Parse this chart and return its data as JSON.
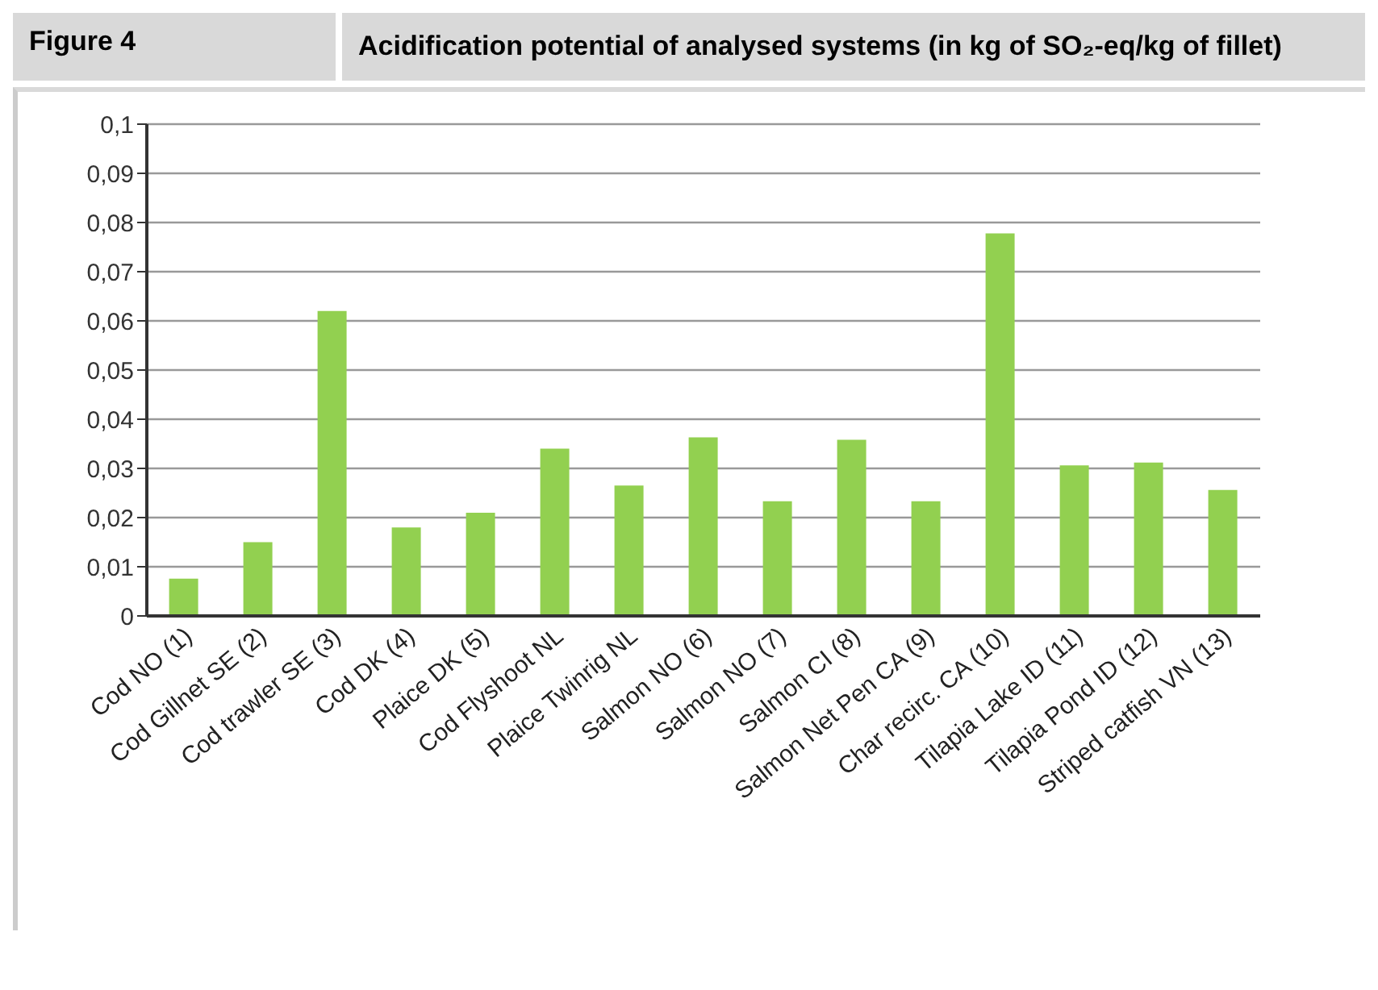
{
  "chart_data": {
    "type": "bar",
    "title": "Acidification potential of analysed systems (in kg of SO₂-eq/kg of fillet)",
    "annotations": [
      "Figure 4"
    ],
    "categories": [
      "Cod NO (1)",
      "Cod Gillnet SE (2)",
      "Cod trawler SE (3)",
      "Cod DK (4)",
      "Plaice DK (5)",
      "Cod Flyshoot NL",
      "Plaice Twinrig NL",
      "Salmon NO (6)",
      "Salmon NO (7)",
      "Salmon CI (8)",
      "Salmon Net Pen CA (9)",
      "Char recirc. CA (10)",
      "Tilapia Lake ID (11)",
      "Tilapia Pond ID (12)",
      "Striped catfish VN (13)"
    ],
    "values": [
      0.0076,
      0.015,
      0.062,
      0.018,
      0.021,
      0.034,
      0.0265,
      0.0363,
      0.0233,
      0.0358,
      0.0233,
      0.0778,
      0.0306,
      0.0312,
      0.0256
    ],
    "color": "#92d050",
    "ylim": [
      0,
      0.1
    ],
    "yticks": [
      0,
      {
        "value": 0.01,
        "label": "0,01"
      },
      {
        "value": 0.02,
        "label": "0,02"
      },
      {
        "value": 0.03,
        "label": "0,03"
      },
      {
        "value": 0.04,
        "label": "0,04"
      },
      {
        "value": 0.05,
        "label": "0,05"
      },
      {
        "value": 0.06,
        "label": "0,06"
      },
      {
        "value": 0.07,
        "label": "0,07"
      },
      {
        "value": 0.08,
        "label": "0,08"
      },
      {
        "value": 0.09,
        "label": "0,09"
      },
      {
        "value": 0.1,
        "label": "0,1"
      }
    ],
    "grid": "y"
  }
}
